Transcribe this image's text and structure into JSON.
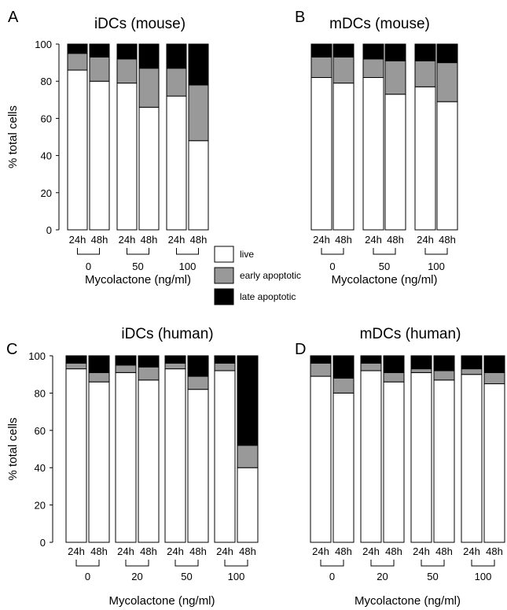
{
  "colors": {
    "live": "#ffffff",
    "early": "#999999",
    "late": "#000000"
  },
  "legend": [
    {
      "key": "live",
      "label": "live"
    },
    {
      "key": "early",
      "label": "early apoptotic"
    },
    {
      "key": "late",
      "label": "late apoptotic"
    }
  ],
  "chart_data": [
    {
      "panel": "A",
      "type": "bar",
      "stacked": true,
      "title": "iDCs (mouse)",
      "ylabel": "% total cells",
      "xlabel": "Mycolactone (ng/ml)",
      "ylim": [
        0,
        100
      ],
      "yticks": [
        0,
        20,
        40,
        60,
        80,
        100
      ],
      "time_labels": [
        "24h",
        "48h"
      ],
      "groups": [
        "0",
        "50",
        "100"
      ],
      "bars": [
        {
          "group": "0",
          "time": "24h",
          "live": 86,
          "early": 9,
          "late": 5
        },
        {
          "group": "0",
          "time": "48h",
          "live": 80,
          "early": 13,
          "late": 7
        },
        {
          "group": "50",
          "time": "24h",
          "live": 79,
          "early": 13,
          "late": 8
        },
        {
          "group": "50",
          "time": "48h",
          "live": 66,
          "early": 21,
          "late": 13
        },
        {
          "group": "100",
          "time": "24h",
          "live": 72,
          "early": 15,
          "late": 13
        },
        {
          "group": "100",
          "time": "48h",
          "live": 48,
          "early": 30,
          "late": 22
        }
      ]
    },
    {
      "panel": "B",
      "type": "bar",
      "stacked": true,
      "title": "mDCs (mouse)",
      "ylabel": "",
      "xlabel": "Mycolactone (ng/ml)",
      "ylim": [
        0,
        100
      ],
      "yticks": [],
      "time_labels": [
        "24h",
        "48h"
      ],
      "groups": [
        "0",
        "50",
        "100"
      ],
      "bars": [
        {
          "group": "0",
          "time": "24h",
          "live": 82,
          "early": 11,
          "late": 7
        },
        {
          "group": "0",
          "time": "48h",
          "live": 79,
          "early": 14,
          "late": 7
        },
        {
          "group": "50",
          "time": "24h",
          "live": 82,
          "early": 10,
          "late": 8
        },
        {
          "group": "50",
          "time": "48h",
          "live": 73,
          "early": 18,
          "late": 9
        },
        {
          "group": "100",
          "time": "24h",
          "live": 77,
          "early": 14,
          "late": 9
        },
        {
          "group": "100",
          "time": "48h",
          "live": 69,
          "early": 21,
          "late": 10
        }
      ]
    },
    {
      "panel": "C",
      "type": "bar",
      "stacked": true,
      "title": "iDCs (human)",
      "ylabel": "% total cells",
      "xlabel": "Mycolactone (ng/ml)",
      "ylim": [
        0,
        100
      ],
      "yticks": [
        0,
        20,
        40,
        60,
        80,
        100
      ],
      "time_labels": [
        "24h",
        "48h"
      ],
      "groups": [
        "0",
        "20",
        "50",
        "100"
      ],
      "bars": [
        {
          "group": "0",
          "time": "24h",
          "live": 93,
          "early": 3,
          "late": 4
        },
        {
          "group": "0",
          "time": "48h",
          "live": 86,
          "early": 5,
          "late": 9
        },
        {
          "group": "20",
          "time": "24h",
          "live": 91,
          "early": 4,
          "late": 5
        },
        {
          "group": "20",
          "time": "48h",
          "live": 87,
          "early": 7,
          "late": 6
        },
        {
          "group": "50",
          "time": "24h",
          "live": 93,
          "early": 3,
          "late": 4
        },
        {
          "group": "50",
          "time": "48h",
          "live": 82,
          "early": 7,
          "late": 11
        },
        {
          "group": "100",
          "time": "24h",
          "live": 92,
          "early": 4,
          "late": 4
        },
        {
          "group": "100",
          "time": "48h",
          "live": 40,
          "early": 12,
          "late": 48
        }
      ]
    },
    {
      "panel": "D",
      "type": "bar",
      "stacked": true,
      "title": "mDCs (human)",
      "ylabel": "",
      "xlabel": "Mycolactone (ng/ml)",
      "ylim": [
        0,
        100
      ],
      "yticks": [],
      "time_labels": [
        "24h",
        "48h"
      ],
      "groups": [
        "0",
        "20",
        "50",
        "100"
      ],
      "bars": [
        {
          "group": "0",
          "time": "24h",
          "live": 89,
          "early": 7,
          "late": 4
        },
        {
          "group": "0",
          "time": "48h",
          "live": 80,
          "early": 8,
          "late": 12
        },
        {
          "group": "20",
          "time": "24h",
          "live": 92,
          "early": 4,
          "late": 4
        },
        {
          "group": "20",
          "time": "48h",
          "live": 86,
          "early": 5,
          "late": 9
        },
        {
          "group": "50",
          "time": "24h",
          "live": 91,
          "early": 2,
          "late": 7
        },
        {
          "group": "50",
          "time": "48h",
          "live": 87,
          "early": 5,
          "late": 8
        },
        {
          "group": "100",
          "time": "24h",
          "live": 90,
          "early": 3,
          "late": 7
        },
        {
          "group": "100",
          "time": "48h",
          "live": 85,
          "early": 6,
          "late": 9
        }
      ]
    }
  ]
}
